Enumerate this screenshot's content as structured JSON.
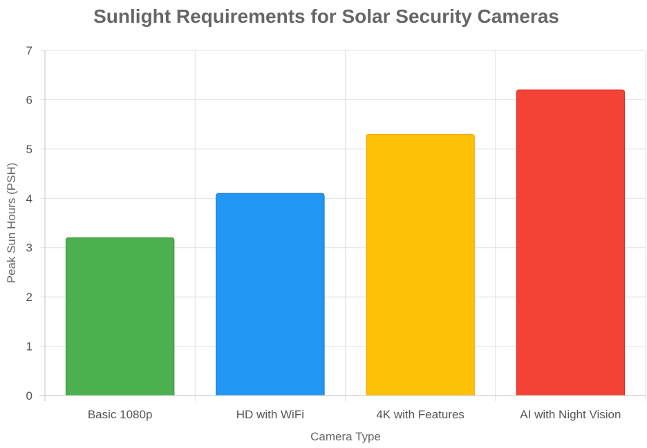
{
  "chart_data": {
    "type": "bar",
    "title": "Sunlight Requirements for Solar Security Cameras",
    "xlabel": "Camera Type",
    "ylabel": "Peak Sun Hours (PSH)",
    "categories": [
      "Basic 1080p",
      "HD with WiFi",
      "4K with Features",
      "AI with Night Vision"
    ],
    "values": [
      3.2,
      4.1,
      5.3,
      6.2
    ],
    "colors": [
      "#4CAF50",
      "#2196F3",
      "#FFC107",
      "#F44336"
    ],
    "border_colors": [
      "#388E3C",
      "#1976D2",
      "#FFA000",
      "#D32F2F"
    ],
    "ylim": [
      0,
      7
    ],
    "yticks": [
      0,
      1,
      2,
      3,
      4,
      5,
      6,
      7
    ],
    "grid": true,
    "legend": "none"
  }
}
